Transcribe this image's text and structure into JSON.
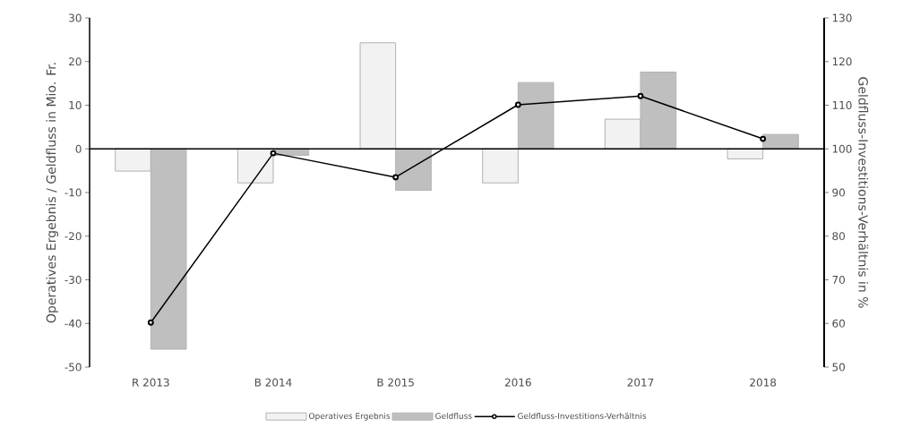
{
  "chart_data": {
    "type": "bar",
    "ylabel": "Operatives Ergebnis / Geldfluss in Mio. Fr.",
    "y2label": "Geldfluss-Investitions-Verhältnis in %",
    "categories": [
      "R 2013",
      "B 2014",
      "B 2015",
      "2016",
      "2017",
      "2018"
    ],
    "series": [
      {
        "name": "Operatives Ergebnis",
        "color": "#f2f2f2",
        "values": [
          -5.1,
          -7.8,
          24.3,
          -7.8,
          6.8,
          -2.3
        ]
      },
      {
        "name": "Geldfluss",
        "color": "#bfbfbf",
        "values": [
          -45.9,
          -1.5,
          -9.5,
          15.2,
          17.6,
          3.3
        ]
      },
      {
        "name": "Geldfluss-Investitions-Verhältnis",
        "type": "line",
        "axis": "y2",
        "marker": "circle",
        "color": "#000000",
        "values": [
          60.2,
          99.0,
          93.5,
          110.1,
          112.1,
          102.3
        ]
      }
    ],
    "ylim": [
      -50,
      30
    ],
    "yticks": [
      -50,
      -40,
      -30,
      -20,
      -10,
      0,
      10,
      20,
      30
    ],
    "y2lim": [
      50,
      130
    ],
    "y2ticks": [
      50,
      60,
      70,
      80,
      90,
      100,
      110,
      120,
      130
    ],
    "ref_lines": [
      {
        "axis": "y",
        "value": 0,
        "color": "#000000"
      }
    ],
    "grid": false,
    "legend": "bottom"
  }
}
